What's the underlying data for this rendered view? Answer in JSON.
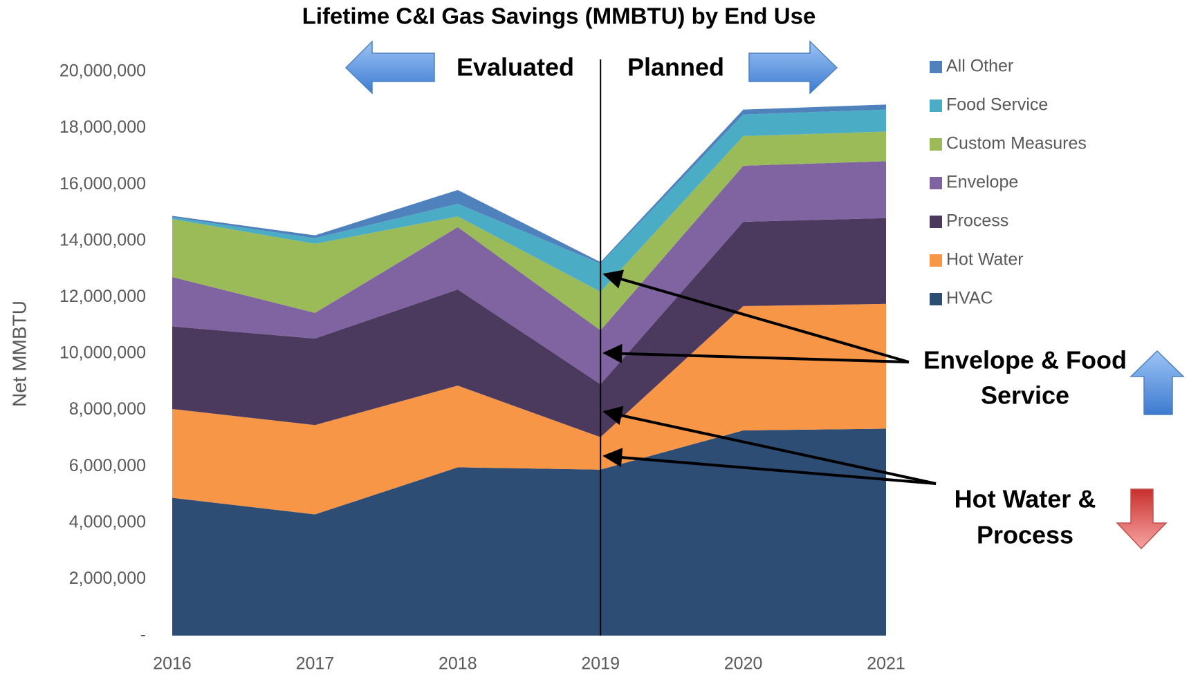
{
  "chart_data": {
    "type": "stacked_area",
    "title": "Lifetime C&I Gas Savings (MMBTU) by End Use",
    "y_label": "Net MMBTU",
    "categories": [
      "2016",
      "2017",
      "2018",
      "2019",
      "2020",
      "2021"
    ],
    "series": [
      {
        "name": "HVAC",
        "color": "#2e4d74",
        "values": [
          4890000,
          4300000,
          5970000,
          5890000,
          7280000,
          7340000
        ]
      },
      {
        "name": "Hot Water",
        "color": "#f79646",
        "values": [
          3150000,
          3170000,
          2900000,
          1150000,
          4410000,
          4430000
        ]
      },
      {
        "name": "Process",
        "color": "#4b3a5e",
        "values": [
          2930000,
          3070000,
          3410000,
          1880000,
          2990000,
          3040000
        ]
      },
      {
        "name": "Envelope",
        "color": "#8064a2",
        "values": [
          1750000,
          910000,
          2210000,
          1910000,
          1990000,
          2020000
        ]
      },
      {
        "name": "Custom Measures",
        "color": "#9bbb59",
        "values": [
          2060000,
          2450000,
          380000,
          1370000,
          1050000,
          1050000
        ]
      },
      {
        "name": "Food Service",
        "color": "#4bacc6",
        "values": [
          60000,
          200000,
          450000,
          1000000,
          770000,
          780000
        ]
      },
      {
        "name": "All Other",
        "color": "#4f81bd",
        "values": [
          50000,
          100000,
          490000,
          50000,
          170000,
          180000
        ]
      }
    ],
    "ylim": [
      0,
      20000000
    ],
    "yticks": [
      {
        "value": 0,
        "label": "-"
      },
      {
        "value": 2000000,
        "label": "2,000,000"
      },
      {
        "value": 4000000,
        "label": "4,000,000"
      },
      {
        "value": 6000000,
        "label": "6,000,000"
      },
      {
        "value": 8000000,
        "label": "8,000,000"
      },
      {
        "value": 10000000,
        "label": "10,000,000"
      },
      {
        "value": 12000000,
        "label": "12,000,000"
      },
      {
        "value": 14000000,
        "label": "14,000,000"
      },
      {
        "value": 16000000,
        "label": "16,000,000"
      },
      {
        "value": 18000000,
        "label": "18,000,000"
      },
      {
        "value": 20000000,
        "label": "20,000,000"
      }
    ],
    "legend": "right",
    "annotations": {
      "evaluated": "Evaluated",
      "planned": "Planned",
      "increase": [
        "Envelope & Food",
        "Service"
      ],
      "decrease": [
        "Hot Water &",
        "Process"
      ]
    }
  }
}
